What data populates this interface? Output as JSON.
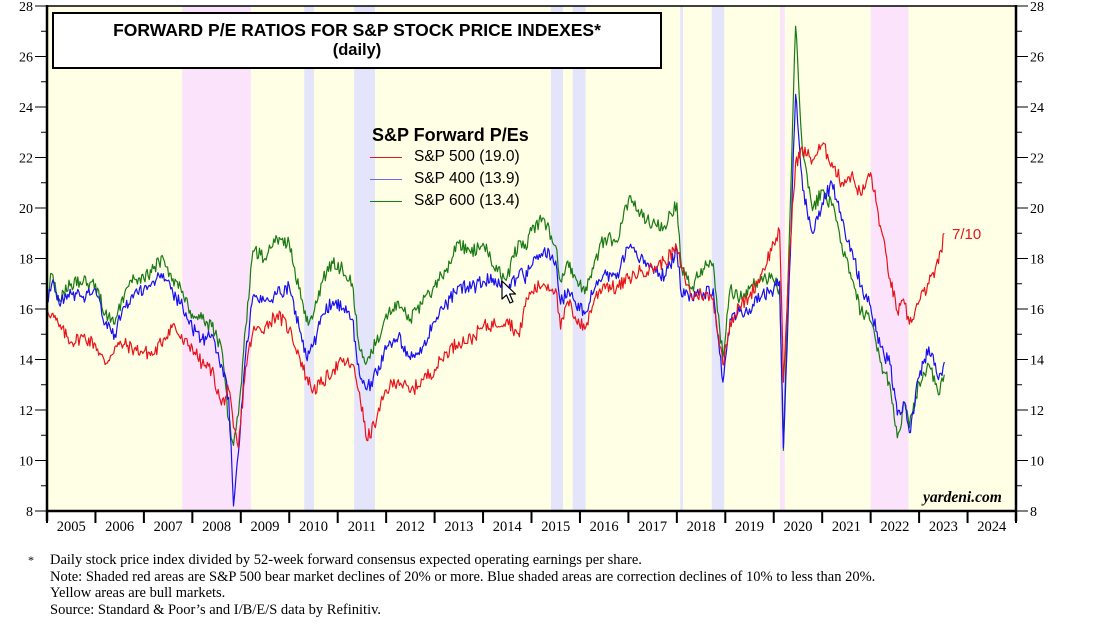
{
  "chart_data": {
    "type": "line",
    "title": "FORWARD P/E RATIOS FOR S&P STOCK PRICE INDEXES*",
    "subtitle": "(daily)",
    "xlabel": "",
    "ylabel": "",
    "xlim": [
      2005,
      2025
    ],
    "ylim": [
      8,
      28
    ],
    "x_tick_labels": [
      "2005",
      "2006",
      "2007",
      "2008",
      "2009",
      "2010",
      "2011",
      "2012",
      "2013",
      "2014",
      "2015",
      "2016",
      "2017",
      "2018",
      "2019",
      "2020",
      "2021",
      "2022",
      "2023",
      "2024"
    ],
    "y_ticks": [
      8,
      10,
      12,
      14,
      16,
      18,
      20,
      22,
      24,
      26,
      28
    ],
    "y_tick_labels": [
      "8",
      "10",
      "12",
      "14",
      "16",
      "18",
      "20",
      "22",
      "24",
      "26",
      "28"
    ],
    "grid": false,
    "legend": {
      "title": "S&P Forward P/Es",
      "placement": "upper-center",
      "entries": [
        "S&P 500 (19.0)",
        "S&P 400 (13.9)",
        "S&P 600 (13.4)"
      ]
    },
    "annotation": "7/10",
    "shaded_regions": [
      {
        "type": "bull",
        "start": 2005.0,
        "end": 2007.79
      },
      {
        "type": "bear",
        "start": 2007.79,
        "end": 2009.21
      },
      {
        "type": "bull",
        "start": 2009.21,
        "end": 2010.31
      },
      {
        "type": "correction",
        "start": 2010.31,
        "end": 2010.51
      },
      {
        "type": "bull",
        "start": 2010.51,
        "end": 2011.34
      },
      {
        "type": "correction",
        "start": 2011.34,
        "end": 2011.77
      },
      {
        "type": "bull",
        "start": 2011.77,
        "end": 2015.4
      },
      {
        "type": "correction",
        "start": 2015.4,
        "end": 2015.65
      },
      {
        "type": "bull",
        "start": 2015.65,
        "end": 2015.85
      },
      {
        "type": "correction",
        "start": 2015.85,
        "end": 2016.12
      },
      {
        "type": "bull",
        "start": 2016.12,
        "end": 2018.07
      },
      {
        "type": "correction",
        "start": 2018.07,
        "end": 2018.13
      },
      {
        "type": "bull",
        "start": 2018.13,
        "end": 2018.72
      },
      {
        "type": "correction",
        "start": 2018.72,
        "end": 2018.98
      },
      {
        "type": "bull",
        "start": 2018.98,
        "end": 2020.13
      },
      {
        "type": "bear",
        "start": 2020.13,
        "end": 2020.23
      },
      {
        "type": "bull",
        "start": 2020.23,
        "end": 2022.0
      },
      {
        "type": "bear",
        "start": 2022.0,
        "end": 2022.78
      },
      {
        "type": "bull",
        "start": 2022.78,
        "end": 2025.0
      }
    ],
    "series": [
      {
        "name": "S&P 500",
        "latest": 19.0,
        "color": "#e8141c",
        "x": [
          2005.0,
          2005.1,
          2005.25,
          2005.5,
          2005.75,
          2006.0,
          2006.2,
          2006.4,
          2006.6,
          2006.8,
          2007.0,
          2007.2,
          2007.4,
          2007.6,
          2007.8,
          2008.0,
          2008.2,
          2008.4,
          2008.6,
          2008.75,
          2008.85,
          2008.95,
          2009.1,
          2009.25,
          2009.5,
          2009.75,
          2010.0,
          2010.2,
          2010.35,
          2010.5,
          2010.7,
          2010.9,
          2011.1,
          2011.3,
          2011.45,
          2011.6,
          2011.8,
          2012.0,
          2012.25,
          2012.5,
          2012.75,
          2013.0,
          2013.25,
          2013.5,
          2013.75,
          2014.0,
          2014.25,
          2014.5,
          2014.75,
          2014.85,
          2015.0,
          2015.25,
          2015.5,
          2015.6,
          2015.75,
          2015.9,
          2016.1,
          2016.3,
          2016.5,
          2016.75,
          2017.0,
          2017.25,
          2017.5,
          2017.75,
          2018.0,
          2018.1,
          2018.3,
          2018.5,
          2018.75,
          2018.95,
          2019.1,
          2019.3,
          2019.5,
          2019.75,
          2020.0,
          2020.12,
          2020.2,
          2020.3,
          2020.45,
          2020.6,
          2020.8,
          2021.0,
          2021.2,
          2021.4,
          2021.6,
          2021.8,
          2022.0,
          2022.2,
          2022.4,
          2022.55,
          2022.7,
          2022.8,
          2023.0,
          2023.2,
          2023.4,
          2023.52
        ],
        "values": [
          16.0,
          15.8,
          15.3,
          14.7,
          14.9,
          14.6,
          13.8,
          14.5,
          14.6,
          14.4,
          14.3,
          14.2,
          14.8,
          15.4,
          14.7,
          14.5,
          13.8,
          13.6,
          12.2,
          12.8,
          11.3,
          10.5,
          13.7,
          15.1,
          15.3,
          15.8,
          15.2,
          14.2,
          13.3,
          12.8,
          13.1,
          13.6,
          13.9,
          13.8,
          12.7,
          10.8,
          11.6,
          12.8,
          13.2,
          12.7,
          13.2,
          13.6,
          14.3,
          14.7,
          14.8,
          15.3,
          15.4,
          15.6,
          14.9,
          16.1,
          16.7,
          17.0,
          16.8,
          15.2,
          16.3,
          15.7,
          15.2,
          16.4,
          17.0,
          16.8,
          17.2,
          17.5,
          17.6,
          17.9,
          18.4,
          17.6,
          16.5,
          16.6,
          16.4,
          13.8,
          15.5,
          16.1,
          16.5,
          17.4,
          18.6,
          19.1,
          13.1,
          17.3,
          21.8,
          22.3,
          21.9,
          22.5,
          21.8,
          21.0,
          21.3,
          20.5,
          21.4,
          19.3,
          17.2,
          15.9,
          16.2,
          15.4,
          16.3,
          17.0,
          17.8,
          19.0
        ]
      },
      {
        "name": "S&P 400",
        "latest": 13.9,
        "color": "#1a10f0",
        "x": [
          2005.0,
          2005.1,
          2005.25,
          2005.5,
          2005.75,
          2006.0,
          2006.2,
          2006.4,
          2006.6,
          2006.8,
          2007.0,
          2007.2,
          2007.4,
          2007.6,
          2007.8,
          2008.0,
          2008.2,
          2008.4,
          2008.6,
          2008.75,
          2008.85,
          2008.95,
          2009.1,
          2009.25,
          2009.5,
          2009.75,
          2010.0,
          2010.2,
          2010.35,
          2010.5,
          2010.7,
          2010.9,
          2011.1,
          2011.3,
          2011.45,
          2011.6,
          2011.8,
          2012.0,
          2012.25,
          2012.5,
          2012.75,
          2013.0,
          2013.25,
          2013.5,
          2013.75,
          2014.0,
          2014.25,
          2014.5,
          2014.75,
          2014.85,
          2015.0,
          2015.25,
          2015.5,
          2015.6,
          2015.75,
          2015.9,
          2016.1,
          2016.3,
          2016.5,
          2016.75,
          2017.0,
          2017.25,
          2017.5,
          2017.75,
          2018.0,
          2018.1,
          2018.3,
          2018.5,
          2018.75,
          2018.95,
          2019.1,
          2019.3,
          2019.5,
          2019.75,
          2020.0,
          2020.12,
          2020.2,
          2020.3,
          2020.45,
          2020.6,
          2020.8,
          2021.0,
          2021.2,
          2021.4,
          2021.6,
          2021.8,
          2022.0,
          2022.2,
          2022.4,
          2022.55,
          2022.7,
          2022.8,
          2023.0,
          2023.2,
          2023.4,
          2023.52
        ],
        "values": [
          16.3,
          17.0,
          16.2,
          16.6,
          16.5,
          16.8,
          15.4,
          15.0,
          16.1,
          16.6,
          16.8,
          17.1,
          17.4,
          16.6,
          16.1,
          15.2,
          14.8,
          15.0,
          13.8,
          12.5,
          8.2,
          10.3,
          14.2,
          16.5,
          16.3,
          16.6,
          16.9,
          15.3,
          14.1,
          14.6,
          15.8,
          16.3,
          16.0,
          15.6,
          13.4,
          12.8,
          13.5,
          14.4,
          14.9,
          14.0,
          14.5,
          15.5,
          16.2,
          16.9,
          16.8,
          17.1,
          17.2,
          16.6,
          17.5,
          17.2,
          17.7,
          18.3,
          17.9,
          16.2,
          16.8,
          16.3,
          15.8,
          16.8,
          17.4,
          17.2,
          18.4,
          18.0,
          17.6,
          17.3,
          18.3,
          16.5,
          16.6,
          16.6,
          16.8,
          13.1,
          15.6,
          15.9,
          16.0,
          16.5,
          16.8,
          17.1,
          10.5,
          16.0,
          24.5,
          20.7,
          19.0,
          20.2,
          21.0,
          19.5,
          18.4,
          16.9,
          16.1,
          14.5,
          13.8,
          11.8,
          12.3,
          11.1,
          13.3,
          14.5,
          13.2,
          13.9
        ]
      },
      {
        "name": "S&P 600",
        "latest": 13.4,
        "color": "#1a7a14",
        "x": [
          2005.0,
          2005.1,
          2005.25,
          2005.5,
          2005.75,
          2006.0,
          2006.2,
          2006.4,
          2006.6,
          2006.8,
          2007.0,
          2007.2,
          2007.4,
          2007.6,
          2007.8,
          2008.0,
          2008.2,
          2008.4,
          2008.6,
          2008.75,
          2008.85,
          2008.95,
          2009.1,
          2009.25,
          2009.5,
          2009.75,
          2010.0,
          2010.2,
          2010.35,
          2010.5,
          2010.7,
          2010.9,
          2011.1,
          2011.3,
          2011.45,
          2011.6,
          2011.8,
          2012.0,
          2012.25,
          2012.5,
          2012.75,
          2013.0,
          2013.25,
          2013.5,
          2013.75,
          2014.0,
          2014.25,
          2014.5,
          2014.75,
          2014.85,
          2015.0,
          2015.25,
          2015.5,
          2015.6,
          2015.75,
          2015.9,
          2016.1,
          2016.3,
          2016.5,
          2016.75,
          2017.0,
          2017.25,
          2017.5,
          2017.75,
          2018.0,
          2018.1,
          2018.3,
          2018.5,
          2018.75,
          2018.95,
          2019.1,
          2019.3,
          2019.5,
          2019.75,
          2020.0,
          2020.12,
          2020.2,
          2020.3,
          2020.45,
          2020.6,
          2020.8,
          2021.0,
          2021.2,
          2021.4,
          2021.6,
          2021.8,
          2022.0,
          2022.2,
          2022.4,
          2022.55,
          2022.7,
          2022.8,
          2023.0,
          2023.2,
          2023.4,
          2023.52
        ],
        "values": [
          16.4,
          17.4,
          16.4,
          17.0,
          17.1,
          17.0,
          15.8,
          15.4,
          16.6,
          17.2,
          17.2,
          17.6,
          18.0,
          17.2,
          16.7,
          15.8,
          15.6,
          15.3,
          14.5,
          11.6,
          10.6,
          11.8,
          15.3,
          18.3,
          18.0,
          18.8,
          18.6,
          16.8,
          15.5,
          15.8,
          17.2,
          17.8,
          17.6,
          17.0,
          14.4,
          13.9,
          14.7,
          15.8,
          16.3,
          15.6,
          16.2,
          16.9,
          17.6,
          18.6,
          18.2,
          18.6,
          17.5,
          17.3,
          18.7,
          18.4,
          19.1,
          19.6,
          18.5,
          17.1,
          17.9,
          17.3,
          16.6,
          17.9,
          18.8,
          18.7,
          20.3,
          19.8,
          19.4,
          19.3,
          20.2,
          17.6,
          16.8,
          17.6,
          17.8,
          14.1,
          16.8,
          16.4,
          16.8,
          17.3,
          17.1,
          16.8,
          10.4,
          17.5,
          27.2,
          22.1,
          19.9,
          20.7,
          20.1,
          18.6,
          17.2,
          15.9,
          15.5,
          13.9,
          13.0,
          10.9,
          12.3,
          11.3,
          13.1,
          13.8,
          12.6,
          13.4
        ]
      }
    ]
  },
  "colors": {
    "bull": "#ffffe6",
    "bear": "#fbe4fb",
    "correction": "#e4e4fb",
    "axis": "#000000"
  },
  "title_box": {
    "line1": "FORWARD P/E RATIOS FOR S&P STOCK PRICE INDEXES*",
    "line2": "(daily)"
  },
  "legend": {
    "title": "S&P Forward P/Es",
    "items": [
      {
        "label": "S&P 500 (19.0)",
        "color": "#e8141c"
      },
      {
        "label": "S&P 400 (13.9)",
        "color": "#1a10f0"
      },
      {
        "label": "S&P 600 (13.4)",
        "color": "#1a7a14"
      }
    ]
  },
  "annotation": "7/10",
  "watermark": "yardeni.com",
  "footnotes": {
    "star": "*",
    "lines": [
      "Daily stock price index divided by 52-week forward consensus expected operating earnings per share.",
      "Note: Shaded red areas are S&P 500 bear market declines of 20% or more.  Blue shaded areas are correction declines of 10% to less than 20%.",
      "Yellow areas are bull markets.",
      "Source: Standard & Poor’s and I/B/E/S data by Refinitiv."
    ]
  }
}
